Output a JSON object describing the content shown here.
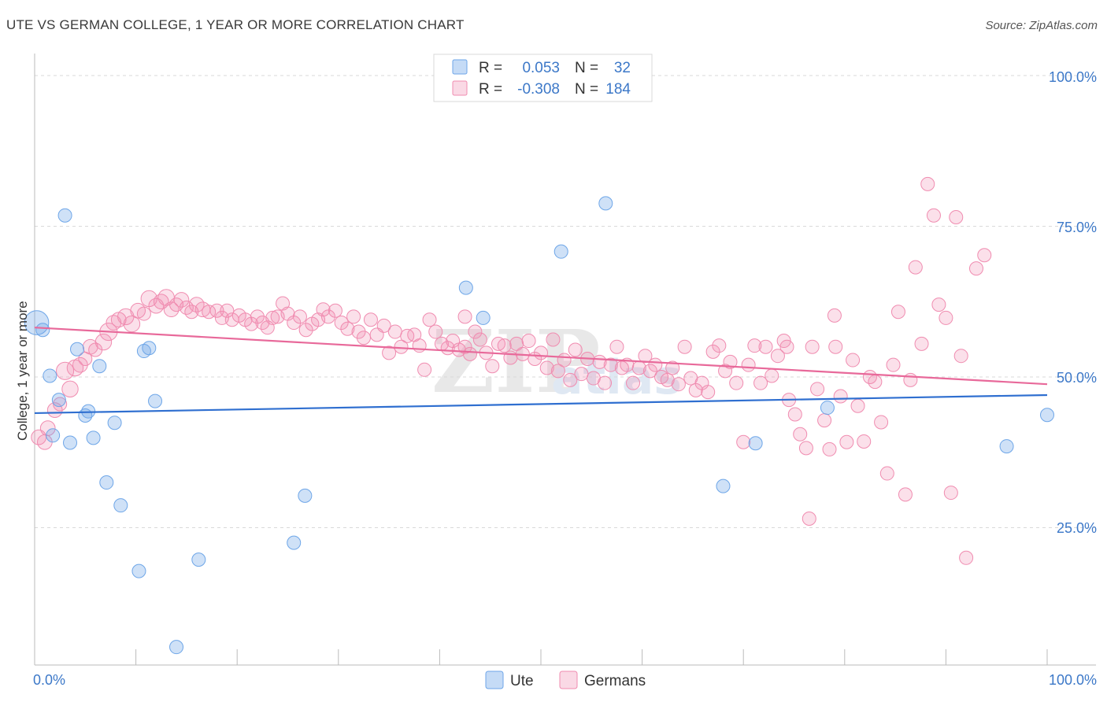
{
  "title": "UTE VS GERMAN COLLEGE, 1 YEAR OR MORE CORRELATION CHART",
  "source": "Source: ZipAtlas.com",
  "watermark": {
    "main": "ZIP",
    "sub": "atlas"
  },
  "colors": {
    "ute": "#6ea6e8",
    "germans": "#f08cb0",
    "ute_line": "#2f6fd0",
    "germans_line": "#e8699a",
    "axis_text": "#3c78c8"
  },
  "legend": {
    "rows": [
      {
        "r_label": "R =",
        "r_value": "0.053",
        "n_label": "N =",
        "n_value": "32"
      },
      {
        "r_label": "R =",
        "r_value": "-0.308",
        "n_label": "N =",
        "n_value": "184"
      }
    ]
  },
  "bottom_legend": [
    {
      "label": "Ute"
    },
    {
      "label": "Germans"
    }
  ],
  "chart_data": {
    "type": "scatter",
    "ylabel": "College, 1 year or more",
    "x_tick_labels": [
      "0.0%",
      "100.0%"
    ],
    "y_tick_labels": [
      "100.0%",
      "75.0%",
      "50.0%",
      "25.0%"
    ],
    "xlim": [
      0,
      100
    ],
    "ylim": [
      0,
      100
    ],
    "grid": true,
    "legend_placement": "top-center",
    "series": [
      {
        "name": "Ute",
        "trend": [
          [
            0,
            44.0
          ],
          [
            100,
            47.0
          ]
        ],
        "points": [
          [
            0.2,
            59.0,
            1.8
          ],
          [
            0.8,
            57.8,
            1
          ],
          [
            3.0,
            76.8,
            1
          ],
          [
            1.5,
            50.2,
            1
          ],
          [
            2.4,
            46.2,
            1
          ],
          [
            1.8,
            40.3,
            1
          ],
          [
            3.5,
            39.1,
            1
          ],
          [
            4.2,
            54.6,
            1
          ],
          [
            5.0,
            43.6,
            1
          ],
          [
            5.3,
            44.3,
            1
          ],
          [
            5.8,
            39.9,
            1
          ],
          [
            6.4,
            51.8,
            1
          ],
          [
            7.1,
            32.5,
            1
          ],
          [
            7.9,
            42.4,
            1
          ],
          [
            8.5,
            28.7,
            1
          ],
          [
            10.3,
            17.8,
            1
          ],
          [
            10.8,
            54.3,
            1
          ],
          [
            11.3,
            54.8,
            1
          ],
          [
            11.9,
            46.0,
            1
          ],
          [
            14.0,
            5.2,
            1
          ],
          [
            16.2,
            19.7,
            1
          ],
          [
            25.6,
            22.5,
            1
          ],
          [
            26.7,
            30.3,
            1
          ],
          [
            42.6,
            64.8,
            1
          ],
          [
            44.3,
            59.8,
            1
          ],
          [
            52.0,
            70.8,
            1
          ],
          [
            56.4,
            78.8,
            1
          ],
          [
            68.0,
            31.9,
            1
          ],
          [
            71.2,
            39.0,
            1
          ],
          [
            78.3,
            44.9,
            1
          ],
          [
            96.0,
            38.5,
            1
          ],
          [
            100.0,
            43.7,
            1
          ]
        ]
      },
      {
        "name": "Germans",
        "trend": [
          [
            0,
            58.2
          ],
          [
            100,
            48.8
          ]
        ],
        "points": [
          [
            0.4,
            40.0,
            1.1
          ],
          [
            1.0,
            39.2,
            1.1
          ],
          [
            1.3,
            41.5,
            1.1
          ],
          [
            2.0,
            44.5,
            1.1
          ],
          [
            2.5,
            45.5,
            1
          ],
          [
            3.0,
            51.0,
            1.3
          ],
          [
            3.5,
            48.0,
            1.2
          ],
          [
            4.0,
            51.5,
            1.2
          ],
          [
            4.5,
            52.0,
            1.1
          ],
          [
            5.0,
            53.0,
            1
          ],
          [
            5.5,
            55.0,
            1.1
          ],
          [
            6.0,
            54.5,
            1
          ],
          [
            6.8,
            55.8,
            1.2
          ],
          [
            7.3,
            57.5,
            1.3
          ],
          [
            7.8,
            59.0,
            1.1
          ],
          [
            8.3,
            59.5,
            1.1
          ],
          [
            9.0,
            60.0,
            1.2
          ],
          [
            9.6,
            58.8,
            1.2
          ],
          [
            10.2,
            61.0,
            1.1
          ],
          [
            10.8,
            60.5,
            1
          ],
          [
            11.3,
            63.0,
            1.2
          ],
          [
            12.0,
            61.8,
            1.1
          ],
          [
            12.5,
            62.5,
            1.1
          ],
          [
            13.0,
            63.2,
            1.2
          ],
          [
            13.5,
            61.2,
            1.1
          ],
          [
            14.0,
            62.0,
            1
          ],
          [
            14.5,
            62.8,
            1.1
          ],
          [
            15.0,
            61.5,
            1
          ],
          [
            15.5,
            60.8,
            1
          ],
          [
            16.0,
            62.0,
            1.1
          ],
          [
            16.6,
            61.2,
            1.1
          ],
          [
            17.2,
            60.8,
            1
          ],
          [
            18.0,
            61.0,
            1
          ],
          [
            18.5,
            59.8,
            1
          ],
          [
            19.0,
            61.0,
            1
          ],
          [
            19.5,
            59.5,
            1
          ],
          [
            20.2,
            60.2,
            1
          ],
          [
            20.8,
            59.5,
            1
          ],
          [
            21.4,
            58.8,
            1
          ],
          [
            22.0,
            60.0,
            1
          ],
          [
            22.5,
            59.0,
            1
          ],
          [
            23.0,
            58.2,
            1
          ],
          [
            23.5,
            59.8,
            1
          ],
          [
            24.0,
            60.0,
            1
          ],
          [
            24.5,
            62.2,
            1
          ],
          [
            25.0,
            60.5,
            1
          ],
          [
            25.6,
            59.0,
            1
          ],
          [
            26.2,
            60.0,
            1
          ],
          [
            26.8,
            57.8,
            1
          ],
          [
            27.4,
            58.8,
            1
          ],
          [
            28.0,
            59.5,
            1
          ],
          [
            28.5,
            61.2,
            1
          ],
          [
            29.0,
            60.0,
            1
          ],
          [
            29.7,
            61.0,
            1
          ],
          [
            30.3,
            59.0,
            1
          ],
          [
            30.9,
            58.0,
            1
          ],
          [
            31.5,
            60.0,
            1
          ],
          [
            32.0,
            57.5,
            1
          ],
          [
            32.5,
            56.5,
            1
          ],
          [
            33.2,
            59.5,
            1
          ],
          [
            33.8,
            57.0,
            1
          ],
          [
            34.5,
            58.5,
            1
          ],
          [
            35.0,
            54.0,
            1
          ],
          [
            35.6,
            57.5,
            1
          ],
          [
            36.2,
            55.0,
            1
          ],
          [
            36.8,
            56.8,
            1
          ],
          [
            37.5,
            57.0,
            1
          ],
          [
            38.0,
            55.2,
            1
          ],
          [
            38.5,
            51.2,
            1
          ],
          [
            39.0,
            59.5,
            1
          ],
          [
            39.6,
            57.5,
            1
          ],
          [
            40.2,
            55.5,
            1
          ],
          [
            40.8,
            54.8,
            1
          ],
          [
            41.3,
            56.0,
            1
          ],
          [
            41.9,
            54.5,
            1
          ],
          [
            42.5,
            55.0,
            1
          ],
          [
            42.5,
            60.0,
            1
          ],
          [
            43.0,
            53.8,
            1
          ],
          [
            43.5,
            57.5,
            1
          ],
          [
            44.0,
            56.2,
            1
          ],
          [
            44.6,
            54.0,
            1
          ],
          [
            45.2,
            51.8,
            1
          ],
          [
            45.8,
            55.5,
            1
          ],
          [
            46.4,
            55.2,
            1
          ],
          [
            47.0,
            53.2,
            1
          ],
          [
            47.6,
            55.5,
            1
          ],
          [
            48.2,
            53.8,
            1
          ],
          [
            48.8,
            56.0,
            1
          ],
          [
            49.4,
            53.0,
            1
          ],
          [
            50.0,
            54.0,
            1
          ],
          [
            50.6,
            51.5,
            1
          ],
          [
            51.2,
            56.2,
            1
          ],
          [
            51.7,
            51.0,
            1
          ],
          [
            52.3,
            52.8,
            1
          ],
          [
            52.9,
            49.5,
            1
          ],
          [
            53.4,
            54.5,
            1
          ],
          [
            54.0,
            50.5,
            1
          ],
          [
            54.6,
            53.0,
            1
          ],
          [
            55.2,
            49.8,
            1
          ],
          [
            55.8,
            52.5,
            1
          ],
          [
            56.3,
            49.0,
            1
          ],
          [
            56.9,
            52.0,
            1
          ],
          [
            57.5,
            55.0,
            1
          ],
          [
            58.0,
            51.5,
            1
          ],
          [
            58.5,
            52.0,
            1
          ],
          [
            59.1,
            49.0,
            1
          ],
          [
            59.7,
            51.5,
            1
          ],
          [
            60.3,
            53.5,
            1
          ],
          [
            60.8,
            51.0,
            1
          ],
          [
            61.3,
            52.0,
            1
          ],
          [
            61.9,
            50.0,
            1
          ],
          [
            62.5,
            49.5,
            1
          ],
          [
            63.0,
            51.5,
            1
          ],
          [
            63.6,
            48.8,
            1
          ],
          [
            64.2,
            55.0,
            1
          ],
          [
            64.8,
            49.8,
            1
          ],
          [
            65.3,
            47.8,
            1
          ],
          [
            65.9,
            49.0,
            1
          ],
          [
            66.5,
            47.5,
            1
          ],
          [
            67.0,
            54.2,
            1
          ],
          [
            67.6,
            55.2,
            1
          ],
          [
            68.2,
            51.0,
            1
          ],
          [
            68.7,
            52.5,
            1
          ],
          [
            69.3,
            49.0,
            1
          ],
          [
            70.0,
            39.2,
            1
          ],
          [
            70.5,
            52.0,
            1
          ],
          [
            71.1,
            55.2,
            1
          ],
          [
            71.7,
            49.0,
            1
          ],
          [
            72.2,
            55.0,
            1
          ],
          [
            72.8,
            50.2,
            1
          ],
          [
            73.4,
            53.5,
            1
          ],
          [
            74.0,
            56.0,
            1
          ],
          [
            74.5,
            46.2,
            1
          ],
          [
            75.1,
            43.8,
            1
          ],
          [
            75.6,
            40.5,
            1
          ],
          [
            76.2,
            38.2,
            1
          ],
          [
            76.8,
            55.0,
            1
          ],
          [
            77.3,
            48.0,
            1
          ],
          [
            78.0,
            42.8,
            1
          ],
          [
            78.5,
            38.0,
            1
          ],
          [
            79.1,
            55.0,
            1
          ],
          [
            79.6,
            46.8,
            1
          ],
          [
            80.2,
            39.2,
            1
          ],
          [
            80.8,
            52.8,
            1
          ],
          [
            81.3,
            45.2,
            1
          ],
          [
            81.9,
            39.3,
            1
          ],
          [
            82.5,
            50.0,
            1
          ],
          [
            83.0,
            49.2,
            1
          ],
          [
            83.6,
            42.5,
            1
          ],
          [
            84.2,
            34.0,
            1
          ],
          [
            84.8,
            52.0,
            1
          ],
          [
            85.3,
            60.8,
            1
          ],
          [
            86.0,
            30.5,
            1
          ],
          [
            86.5,
            49.5,
            1
          ],
          [
            87.0,
            68.2,
            1
          ],
          [
            87.6,
            55.5,
            1
          ],
          [
            88.2,
            82.0,
            1
          ],
          [
            88.8,
            76.8,
            1
          ],
          [
            89.3,
            62.0,
            1
          ],
          [
            90.0,
            59.8,
            1
          ],
          [
            90.5,
            30.8,
            1
          ],
          [
            91.0,
            76.5,
            1
          ],
          [
            91.5,
            53.5,
            1
          ],
          [
            92.0,
            20.0,
            1
          ],
          [
            93.0,
            68.0,
            1
          ],
          [
            93.8,
            70.2,
            1
          ],
          [
            76.5,
            26.5,
            1
          ],
          [
            79.0,
            60.2,
            1
          ],
          [
            74.3,
            55.0,
            1
          ]
        ]
      }
    ]
  }
}
